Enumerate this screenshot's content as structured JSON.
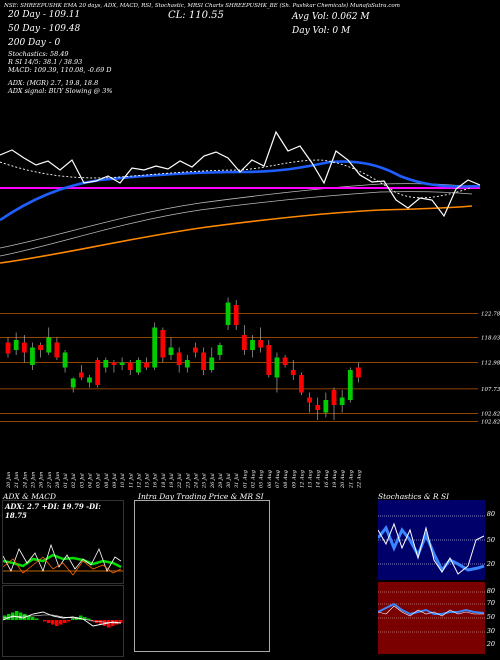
{
  "header": {
    "line": "NSE: SHREEPUSHK  EMA 20 days, ADX, MACD, RSI, Stochastic, MRSI Charts SHREEPUSHK_BE  (Sh. Pushkar Chemicals)  MunafaSutra.com",
    "close_label": "CL: 110.55",
    "ema20": "20 Day - 109.11",
    "ema50": "50 Day - 109.48",
    "ema200": "200 Day - 0",
    "avg_volume": "Avg Vol: 0.062  M",
    "day_volume": "Day Vol: 0  M",
    "stochastics": "Stochastics: 58.49",
    "rsi_line": "R     SI 14/5: 38.1 / 38.93",
    "macd_line": "MACD: 109.39, 110.08, -0.69 D",
    "adx_line": "ADX:                         (MGR) 2.7, 19.8, 18.8",
    "adx_signal": "ADX  signal:                                              BUY Slowing @ 3%"
  },
  "price_axis": [
    "122.78",
    "118.03",
    "112.98",
    "107.73",
    "102.82",
    "102.82"
  ],
  "price_values": [
    122.78,
    118.03,
    112.98,
    107.73,
    102.82,
    102.82
  ],
  "dates": [
    "20 Jun",
    "21 Jun",
    "24 Jun",
    "25 Jun",
    "26 Jun",
    "27 Jun",
    "28 Jun",
    "01 Jul",
    "02 Jul",
    "03 Jul",
    "04 Jul",
    "05 Jul",
    "08 Jul",
    "09 Jul",
    "10 Jul",
    "11 Jul",
    "12 Jul",
    "15 Jul",
    "16 Jul",
    "18 Jul",
    "19 Jul",
    "22 Jul",
    "23 Jul",
    "24 Jul",
    "25 Jul",
    "26 Jul",
    "29 Jul",
    "30 Jul",
    "31 Jul",
    "01 Aug",
    "02 Aug",
    "05 Aug",
    "06 Aug",
    "07 Aug",
    "08 Aug",
    "09 Aug",
    "12 Aug",
    "13 Aug",
    "14 Aug",
    "16 Aug",
    "19 Aug",
    "20 Aug",
    "21 Aug",
    "22 Aug"
  ],
  "candles": [
    {
      "o": 117.0,
      "c": 114.8,
      "h": 118.0,
      "l": 114.0
    },
    {
      "o": 115.5,
      "c": 117.5,
      "h": 119.0,
      "l": 114.5
    },
    {
      "o": 117.0,
      "c": 115.0,
      "h": 118.5,
      "l": 113.0
    },
    {
      "o": 112.5,
      "c": 116.0,
      "h": 117.0,
      "l": 111.5
    },
    {
      "o": 116.5,
      "c": 115.5,
      "h": 117.0,
      "l": 114.0
    },
    {
      "o": 115.0,
      "c": 118.0,
      "h": 120.0,
      "l": 114.5
    },
    {
      "o": 117.0,
      "c": 114.0,
      "h": 118.0,
      "l": 113.5
    },
    {
      "o": 112.0,
      "c": 115.0,
      "h": 115.5,
      "l": 111.0
    },
    {
      "o": 108.0,
      "c": 109.8,
      "h": 110.0,
      "l": 107.0
    },
    {
      "o": 111.0,
      "c": 110.0,
      "h": 112.5,
      "l": 109.5
    },
    {
      "o": 109.0,
      "c": 110.0,
      "h": 110.5,
      "l": 108.0
    },
    {
      "o": 113.5,
      "c": 108.5,
      "h": 114.0,
      "l": 108.0
    },
    {
      "o": 112.0,
      "c": 113.5,
      "h": 114.0,
      "l": 111.0
    },
    {
      "o": 113.0,
      "c": 112.5,
      "h": 113.5,
      "l": 111.0
    },
    {
      "o": 112.5,
      "c": 113.0,
      "h": 114.0,
      "l": 111.5
    },
    {
      "o": 113.0,
      "c": 111.5,
      "h": 113.5,
      "l": 110.5
    },
    {
      "o": 111.0,
      "c": 113.5,
      "h": 114.0,
      "l": 110.5
    },
    {
      "o": 113.0,
      "c": 112.0,
      "h": 114.0,
      "l": 111.5
    },
    {
      "o": 112.0,
      "c": 120.0,
      "h": 121.0,
      "l": 111.5
    },
    {
      "o": 119.5,
      "c": 114.0,
      "h": 120.0,
      "l": 113.0
    },
    {
      "o": 114.5,
      "c": 116.0,
      "h": 118.0,
      "l": 113.5
    },
    {
      "o": 115.0,
      "c": 112.5,
      "h": 116.0,
      "l": 111.0
    },
    {
      "o": 112.0,
      "c": 113.5,
      "h": 114.5,
      "l": 111.0
    },
    {
      "o": 116.0,
      "c": 115.0,
      "h": 117.0,
      "l": 114.0
    },
    {
      "o": 115.0,
      "c": 111.5,
      "h": 116.0,
      "l": 110.5
    },
    {
      "o": 111.5,
      "c": 114.0,
      "h": 116.0,
      "l": 111.0
    },
    {
      "o": 114.5,
      "c": 116.5,
      "h": 117.0,
      "l": 113.5
    },
    {
      "o": 120.5,
      "c": 125.0,
      "h": 126.0,
      "l": 119.5
    },
    {
      "o": 124.5,
      "c": 120.5,
      "h": 125.5,
      "l": 119.5
    },
    {
      "o": 118.5,
      "c": 115.5,
      "h": 120.5,
      "l": 114.5
    },
    {
      "o": 115.5,
      "c": 117.5,
      "h": 118.5,
      "l": 114.0
    },
    {
      "o": 117.5,
      "c": 116.0,
      "h": 120.0,
      "l": 115.0
    },
    {
      "o": 116.5,
      "c": 110.5,
      "h": 117.5,
      "l": 110.0
    },
    {
      "o": 110.0,
      "c": 114.0,
      "h": 115.0,
      "l": 107.0
    },
    {
      "o": 114.0,
      "c": 112.5,
      "h": 114.5,
      "l": 112.0
    },
    {
      "o": 111.5,
      "c": 110.5,
      "h": 113.5,
      "l": 109.5
    },
    {
      "o": 110.5,
      "c": 107.0,
      "h": 111.0,
      "l": 106.5
    },
    {
      "o": 106.0,
      "c": 105.0,
      "h": 107.0,
      "l": 103.0
    },
    {
      "o": 104.5,
      "c": 103.5,
      "h": 106.0,
      "l": 101.5
    },
    {
      "o": 103.0,
      "c": 105.5,
      "h": 107.0,
      "l": 102.0
    },
    {
      "o": 107.5,
      "c": 104.5,
      "h": 108.0,
      "l": 101.5
    },
    {
      "o": 104.5,
      "c": 106.0,
      "h": 107.5,
      "l": 103.0
    },
    {
      "o": 105.5,
      "c": 111.5,
      "h": 112.0,
      "l": 105.0
    },
    {
      "o": 112.0,
      "c": 110.0,
      "h": 113.0,
      "l": 109.0
    }
  ],
  "panels": {
    "adx_title": "ADX  & MACD",
    "adx_values": "ADX: 2.7  +DI: 19.79  -DI: 18.75",
    "intra_title": "Intra  Day Trading Price  & MR                SI",
    "stoch_title": "Stochastics & R                SI",
    "stoch_axis": [
      "80",
      "50",
      "20"
    ],
    "rsi_axis": [
      "80",
      "70",
      "50",
      "30",
      "20"
    ]
  },
  "colors": {
    "bull": "#00cc00",
    "bear": "#ff0000",
    "ema20": "#ffffff",
    "blue_line": "#1f5fff",
    "magenta_line": "#ff00ff",
    "orange_line": "#ff8800",
    "price_level": "#c05a00",
    "stoch_bg": "#00006a",
    "rsi_bg": "#7a0000"
  }
}
